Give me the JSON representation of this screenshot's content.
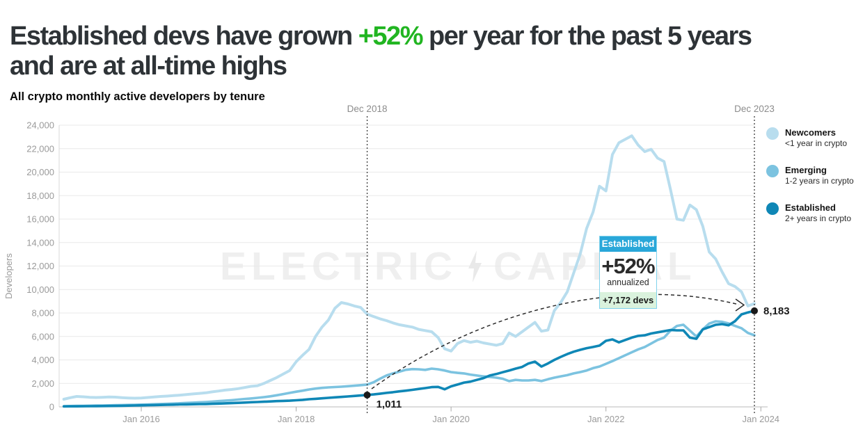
{
  "headline": {
    "line1_pre": "Established devs have grown ",
    "line1_highlight": "+52%",
    "line1_post": " per year for the past 5 years",
    "line2": "and are at all-time highs",
    "highlight_color": "#21b521"
  },
  "subtitle": "All crypto monthly active developers by tenure",
  "watermark": {
    "left": "ELECTRIC",
    "right": "CAPITAL",
    "bolt_icon": "lightning-bolt-icon"
  },
  "axes": {
    "y_label": "Developers",
    "y_tick_labels": [
      "0",
      "2,000",
      "4,000",
      "6,000",
      "8,000",
      "10,000",
      "12,000",
      "14,000",
      "16,000",
      "18,000",
      "20,000",
      "22,000",
      "24,000"
    ],
    "x_tick_labels": [
      "Jan 2016",
      "Jan 2018",
      "Jan 2020",
      "Jan 2022",
      "Jan 2024"
    ]
  },
  "chart_data": {
    "type": "line",
    "title": "All crypto monthly active developers by tenure",
    "xlabel": "",
    "ylabel": "Developers",
    "ylim": [
      0,
      24000
    ],
    "y_tick_step": 2000,
    "x_range": [
      "Jan 2015",
      "Dec 2023"
    ],
    "x_interval": "monthly",
    "x_tick_labels": [
      "Jan 2016",
      "Jan 2018",
      "Jan 2020",
      "Jan 2022",
      "Jan 2024"
    ],
    "x_tick_month_index": [
      12,
      36,
      60,
      84,
      108
    ],
    "grid": "horizontal",
    "legend_position": "top-right",
    "series": [
      {
        "name": "Newcomers",
        "desc": "<1 year in crypto",
        "color": "#b8ddee",
        "width": 4,
        "values": [
          650,
          780,
          890,
          860,
          820,
          800,
          820,
          840,
          830,
          790,
          760,
          740,
          760,
          800,
          840,
          890,
          920,
          960,
          1000,
          1050,
          1100,
          1150,
          1200,
          1280,
          1350,
          1430,
          1480,
          1550,
          1650,
          1750,
          1800,
          2000,
          2250,
          2500,
          2800,
          3100,
          3850,
          4400,
          4900,
          6000,
          6800,
          7400,
          8400,
          8890,
          8770,
          8600,
          8470,
          7900,
          7700,
          7500,
          7350,
          7150,
          7000,
          6900,
          6800,
          6600,
          6500,
          6400,
          5900,
          4950,
          4750,
          5400,
          5650,
          5500,
          5600,
          5450,
          5350,
          5250,
          5400,
          6300,
          6000,
          6400,
          6800,
          7200,
          6450,
          6550,
          8200,
          8900,
          9800,
          11400,
          13000,
          15200,
          16600,
          18800,
          18400,
          21500,
          22500,
          22800,
          23100,
          22300,
          21750,
          21950,
          21200,
          20900,
          18500,
          16000,
          15900,
          17200,
          16800,
          15400,
          13200,
          12600,
          11500,
          10500,
          10250,
          9800,
          8600,
          8800
        ]
      },
      {
        "name": "Emerging",
        "desc": "1-2 years in crypto",
        "color": "#7cc3e0",
        "width": 3.6,
        "values": [
          60,
          70,
          80,
          90,
          100,
          110,
          120,
          130,
          140,
          155,
          165,
          180,
          195,
          210,
          225,
          245,
          265,
          285,
          310,
          335,
          360,
          390,
          415,
          450,
          490,
          530,
          570,
          620,
          670,
          720,
          770,
          830,
          900,
          990,
          1090,
          1190,
          1290,
          1380,
          1480,
          1560,
          1620,
          1660,
          1690,
          1720,
          1760,
          1800,
          1850,
          1900,
          2100,
          2400,
          2670,
          2850,
          3000,
          3160,
          3220,
          3200,
          3150,
          3260,
          3200,
          3100,
          2960,
          2900,
          2850,
          2750,
          2670,
          2600,
          2550,
          2490,
          2400,
          2190,
          2300,
          2250,
          2250,
          2300,
          2200,
          2350,
          2490,
          2600,
          2700,
          2850,
          2960,
          3100,
          3300,
          3440,
          3670,
          3900,
          4150,
          4400,
          4650,
          4900,
          5100,
          5400,
          5700,
          5900,
          6500,
          6900,
          7000,
          6500,
          6000,
          6600,
          7100,
          7290,
          7250,
          7110,
          6900,
          6700,
          6300,
          6100
        ]
      },
      {
        "name": "Established",
        "desc": "2+ years in crypto",
        "color": "#0f87b6",
        "width": 3.6,
        "values": [
          40,
          45,
          50,
          55,
          60,
          65,
          70,
          78,
          85,
          95,
          105,
          120,
          130,
          140,
          152,
          165,
          178,
          190,
          205,
          215,
          228,
          235,
          240,
          260,
          280,
          300,
          320,
          345,
          370,
          395,
          415,
          440,
          465,
          490,
          510,
          530,
          560,
          600,
          650,
          690,
          730,
          770,
          810,
          850,
          890,
          930,
          970,
          1011,
          1060,
          1120,
          1190,
          1250,
          1320,
          1380,
          1450,
          1530,
          1600,
          1680,
          1700,
          1500,
          1750,
          1900,
          2070,
          2150,
          2300,
          2450,
          2670,
          2800,
          2950,
          3100,
          3260,
          3400,
          3700,
          3850,
          3440,
          3700,
          4000,
          4260,
          4500,
          4700,
          4860,
          5000,
          5100,
          5220,
          5630,
          5750,
          5500,
          5700,
          5900,
          6050,
          6100,
          6250,
          6350,
          6450,
          6550,
          6520,
          6520,
          5900,
          5800,
          6600,
          6800,
          7000,
          7050,
          6950,
          7300,
          7880,
          8050,
          8183
        ]
      }
    ],
    "annotations": {
      "markers": [
        {
          "date_label": "Dec 2018",
          "month_index": 47,
          "series": "Established",
          "value": 1011,
          "value_label": "1,011"
        },
        {
          "date_label": "Dec 2023",
          "month_index": 107,
          "series": "Established",
          "value": 8183,
          "value_label": "8,183"
        }
      ],
      "callout": {
        "header": "Established",
        "percent": "+52%",
        "subtext": "annualized",
        "footer": "+7,172 devs",
        "header_bg": "#29a7d9",
        "footer_bg": "#daf2dd"
      },
      "growth_arrow": "dashed arc from 1,011 (Dec 2018) to 8,183 (Dec 2023)"
    }
  }
}
